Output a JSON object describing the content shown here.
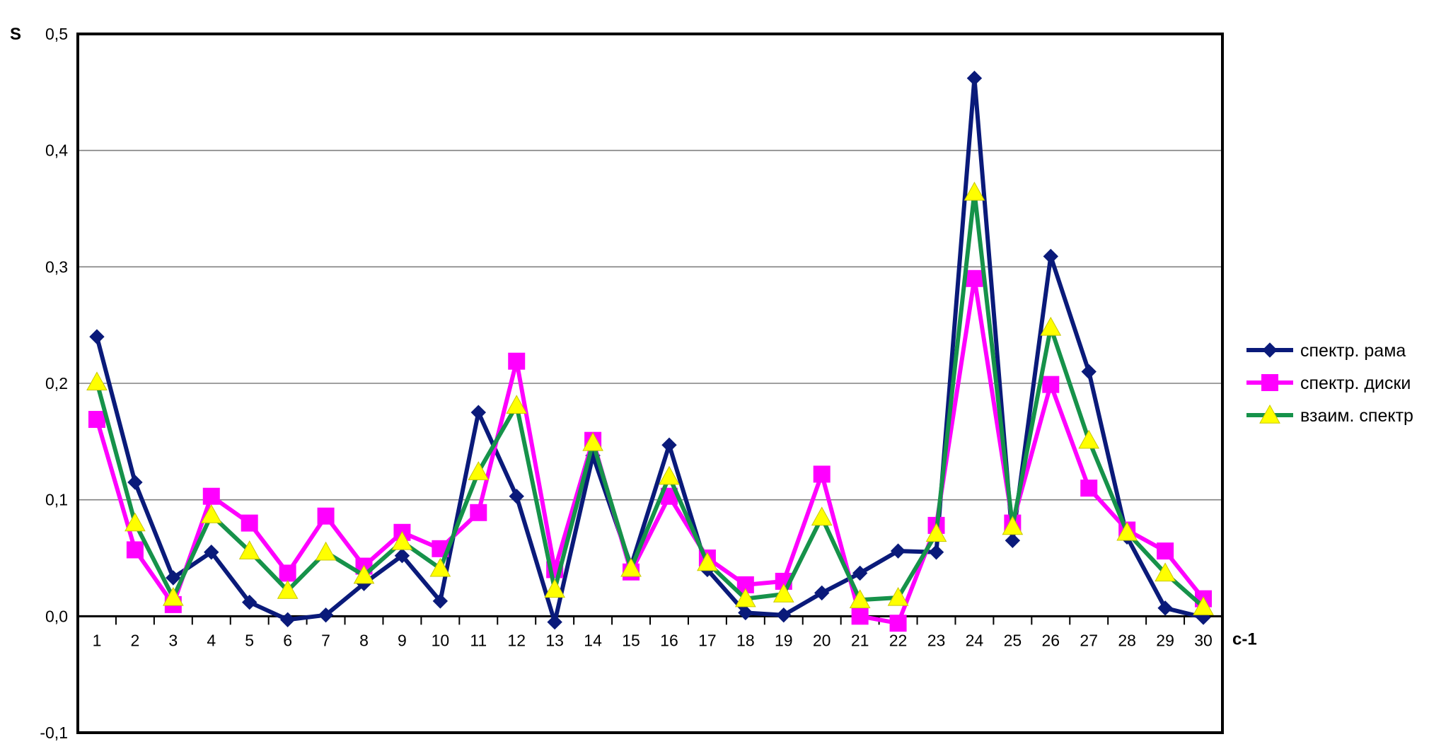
{
  "chart_data": {
    "type": "line",
    "title": "",
    "ylabel": "S",
    "xlabel": "c-1",
    "x": [
      1,
      2,
      3,
      4,
      5,
      6,
      7,
      8,
      9,
      10,
      11,
      12,
      13,
      14,
      15,
      16,
      17,
      18,
      19,
      20,
      21,
      22,
      23,
      24,
      25,
      26,
      27,
      28,
      29,
      30
    ],
    "ylim": [
      -0.1,
      0.5
    ],
    "yticks": [
      -0.1,
      0.0,
      0.1,
      0.2,
      0.3,
      0.4,
      0.5
    ],
    "ytick_labels": [
      "-0,1",
      "0,0",
      "0,1",
      "0,2",
      "0,3",
      "0,4",
      "0,5"
    ],
    "grid": true,
    "legend_position": "right",
    "series": [
      {
        "name": "спектр. рама",
        "color": "#0a1a7a",
        "marker": "diamond",
        "values": [
          0.24,
          0.115,
          0.033,
          0.055,
          0.012,
          -0.003,
          0.001,
          0.028,
          0.052,
          0.013,
          0.175,
          0.103,
          -0.005,
          0.138,
          0.043,
          0.147,
          0.04,
          0.003,
          0.001,
          0.02,
          0.037,
          0.056,
          0.055,
          0.462,
          0.065,
          0.309,
          0.21,
          0.068,
          0.007,
          -0.001
        ]
      },
      {
        "name": "спектр. диски",
        "color": "#ff00ff",
        "marker": "square",
        "values": [
          0.169,
          0.057,
          0.01,
          0.103,
          0.08,
          0.037,
          0.086,
          0.043,
          0.072,
          0.058,
          0.089,
          0.219,
          0.04,
          0.151,
          0.038,
          0.103,
          0.05,
          0.027,
          0.03,
          0.122,
          0.0,
          -0.006,
          0.078,
          0.29,
          0.08,
          0.199,
          0.11,
          0.074,
          0.056,
          0.015
        ]
      },
      {
        "name": "взаим. спектр",
        "color": "#16924a",
        "marker": "triangle",
        "values": [
          0.201,
          0.08,
          0.016,
          0.087,
          0.056,
          0.022,
          0.055,
          0.035,
          0.064,
          0.041,
          0.124,
          0.181,
          0.023,
          0.149,
          0.041,
          0.12,
          0.046,
          0.015,
          0.019,
          0.085,
          0.014,
          0.016,
          0.071,
          0.364,
          0.077,
          0.248,
          0.151,
          0.072,
          0.037,
          0.008
        ]
      }
    ]
  }
}
